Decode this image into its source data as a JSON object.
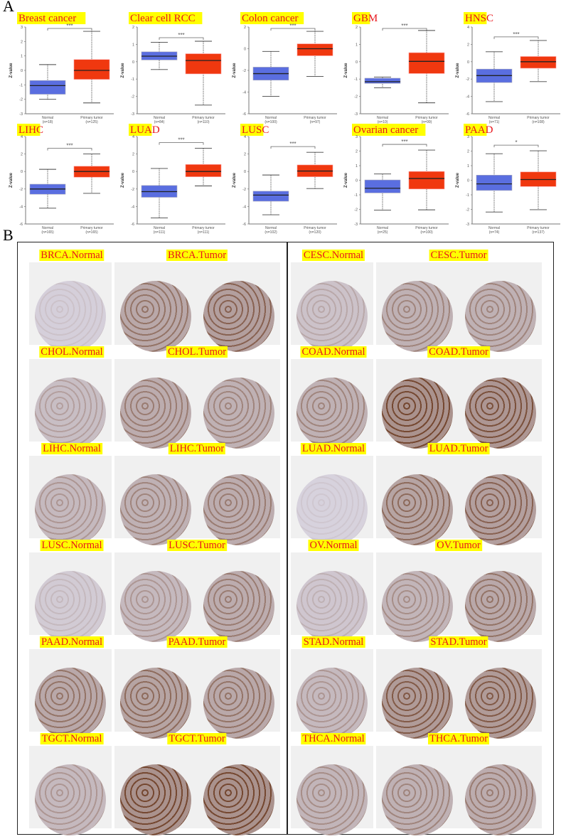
{
  "panel_a": {
    "letter": "A"
  },
  "panel_b": {
    "letter": "B",
    "rows": [
      {
        "left": {
          "normal": "BRCA.Normal",
          "tumor": "BRCA.Tumor"
        },
        "right": {
          "normal": "CESC.Normal",
          "tumor": "CESC.Tumor"
        }
      },
      {
        "left": {
          "normal": "CHOL.Normal",
          "tumor": "CHOL.Tumor"
        },
        "right": {
          "normal": "COAD.Normal",
          "tumor": "COAD.Tumor"
        }
      },
      {
        "left": {
          "normal": "LIHC.Normal",
          "tumor": "LIHC.Tumor"
        },
        "right": {
          "normal": "LUAD.Normal",
          "tumor": "LUAD.Tumor"
        }
      },
      {
        "left": {
          "normal": "LUSC.Normal",
          "tumor": "LUSC.Tumor"
        },
        "right": {
          "normal": "OV.Normal",
          "tumor": "OV.Tumor"
        }
      },
      {
        "left": {
          "normal": "PAAD.Normal",
          "tumor": "PAAD.Tumor"
        },
        "right": {
          "normal": "STAD.Normal",
          "tumor": "STAD.Tumor"
        }
      },
      {
        "left": {
          "normal": "TGCT.Normal",
          "tumor": "TGCT.Tumor"
        },
        "right": {
          "normal": "THCA.Normal",
          "tumor": "THCA.Tumor"
        }
      }
    ]
  },
  "colors": {
    "normal": "#5a6ee0",
    "tumor": "#f0380f",
    "title_bg": "#ffff00",
    "title_text": "#e8151b"
  },
  "chart_data": [
    {
      "type": "box",
      "title": "Breast cancer",
      "ylabel": "Z-value",
      "ylim": [
        -3,
        3
      ],
      "categories": [
        "Normal",
        "Primary tumor"
      ],
      "n_labels": [
        "(n=18)",
        "(n=125)"
      ],
      "significance": "***",
      "boxes": [
        {
          "min": -2.0,
          "q1": -1.65,
          "median": -1.05,
          "q3": -0.7,
          "max": 0.4
        },
        {
          "min": -2.25,
          "q1": -0.62,
          "median": 0,
          "q3": 0.75,
          "max": 2.7
        }
      ]
    },
    {
      "type": "box",
      "title": "Clear cell RCC",
      "ylabel": "Z-value",
      "ylim": [
        -3,
        2
      ],
      "categories": [
        "Normal",
        "Primary tumor"
      ],
      "n_labels": [
        "(n=84)",
        "(n=110)"
      ],
      "significance": "***",
      "boxes": [
        {
          "min": -0.45,
          "q1": 0.1,
          "median": 0.32,
          "q3": 0.57,
          "max": 1.12
        },
        {
          "min": -2.5,
          "q1": -0.7,
          "median": 0.07,
          "q3": 0.46,
          "max": 1.18
        }
      ]
    },
    {
      "type": "box",
      "title": "Colon cancer",
      "ylabel": "Z-value",
      "ylim": [
        -6,
        2
      ],
      "categories": [
        "Normal",
        "Primary tumor"
      ],
      "n_labels": [
        "(n=100)",
        "(n=97)"
      ],
      "significance": "***",
      "boxes": [
        {
          "min": -4.4,
          "q1": -2.9,
          "median": -2.3,
          "q3": -1.7,
          "max": -0.25
        },
        {
          "min": -2.55,
          "q1": -0.65,
          "median": 0,
          "q3": 0.45,
          "max": 1.6
        }
      ]
    },
    {
      "type": "box",
      "title": "GBM",
      "ylabel": "Z-value",
      "ylim": [
        -3,
        2
      ],
      "categories": [
        "Normal",
        "Primary tumor"
      ],
      "n_labels": [
        "(n=10)",
        "(n=99)"
      ],
      "significance": "***",
      "boxes": [
        {
          "min": -1.5,
          "q1": -1.25,
          "median": -1.15,
          "q3": -0.95,
          "max": -0.88
        },
        {
          "min": -2.37,
          "q1": -0.68,
          "median": 0.02,
          "q3": 0.52,
          "max": 1.8
        }
      ]
    },
    {
      "type": "box",
      "title": "HNSC",
      "ylabel": "Z-value",
      "ylim": [
        -6,
        4
      ],
      "categories": [
        "Normal",
        "Primary tumor"
      ],
      "n_labels": [
        "(n=71)",
        "(n=108)"
      ],
      "significance": "***",
      "boxes": [
        {
          "min": -4.6,
          "q1": -2.4,
          "median": -1.6,
          "q3": -0.85,
          "max": 1.15
        },
        {
          "min": -2.3,
          "q1": -0.75,
          "median": 0,
          "q3": 0.6,
          "max": 2.45
        }
      ]
    },
    {
      "type": "box",
      "title": "LIHC",
      "ylabel": "Z-value",
      "ylim": [
        -6,
        4
      ],
      "categories": [
        "Normal",
        "Primary tumor"
      ],
      "n_labels": [
        "(n=165)",
        "(n=165)"
      ],
      "significance": "***",
      "boxes": [
        {
          "min": -4.2,
          "q1": -2.6,
          "median": -2.0,
          "q3": -1.45,
          "max": 0.25
        },
        {
          "min": -2.5,
          "q1": -0.65,
          "median": 0,
          "q3": 0.6,
          "max": 2.0
        }
      ]
    },
    {
      "type": "box",
      "title": "LUAD",
      "ylabel": "Z-value",
      "ylim": [
        -6,
        4
      ],
      "categories": [
        "Normal",
        "Primary tumor"
      ],
      "n_labels": [
        "(n=111)",
        "(n=111)"
      ],
      "significance": "***",
      "boxes": [
        {
          "min": -5.3,
          "q1": -2.95,
          "median": -2.3,
          "q3": -1.6,
          "max": 0.35
        },
        {
          "min": -1.65,
          "q1": -0.6,
          "median": 0,
          "q3": 0.8,
          "max": 2.65
        }
      ]
    },
    {
      "type": "box",
      "title": "LUSC",
      "ylabel": "Z-value",
      "ylim": [
        -6,
        4
      ],
      "categories": [
        "Normal",
        "Primary tumor"
      ],
      "n_labels": [
        "(n=102)",
        "(n=120)"
      ],
      "significance": "***",
      "boxes": [
        {
          "min": -4.95,
          "q1": -3.4,
          "median": -2.7,
          "q3": -2.25,
          "max": -0.4
        },
        {
          "min": -1.95,
          "q1": -0.6,
          "median": 0.05,
          "q3": 0.75,
          "max": 2.2
        }
      ]
    },
    {
      "type": "box",
      "title": "Ovarian cancer",
      "ylabel": "Z-value",
      "ylim": [
        -3,
        3
      ],
      "categories": [
        "Normal",
        "Primary tumor"
      ],
      "n_labels": [
        "(n=25)",
        "(n=100)"
      ],
      "significance": "***",
      "boxes": [
        {
          "min": -2.05,
          "q1": -0.87,
          "median": -0.55,
          "q3": 0.02,
          "max": 0.43
        },
        {
          "min": -2.03,
          "q1": -0.6,
          "median": 0.12,
          "q3": 0.6,
          "max": 2.07
        }
      ]
    },
    {
      "type": "box",
      "title": "PAAD",
      "ylabel": "Z-value",
      "ylim": [
        -3,
        3
      ],
      "categories": [
        "Normal",
        "Primary tumor"
      ],
      "n_labels": [
        "(n=74)",
        "(n=137)"
      ],
      "significance": "*",
      "boxes": [
        {
          "min": -2.18,
          "q1": -0.7,
          "median": -0.25,
          "q3": 0.35,
          "max": 1.82
        },
        {
          "min": -2.02,
          "q1": -0.43,
          "median": 0.05,
          "q3": 0.57,
          "max": 2.02
        }
      ]
    }
  ]
}
